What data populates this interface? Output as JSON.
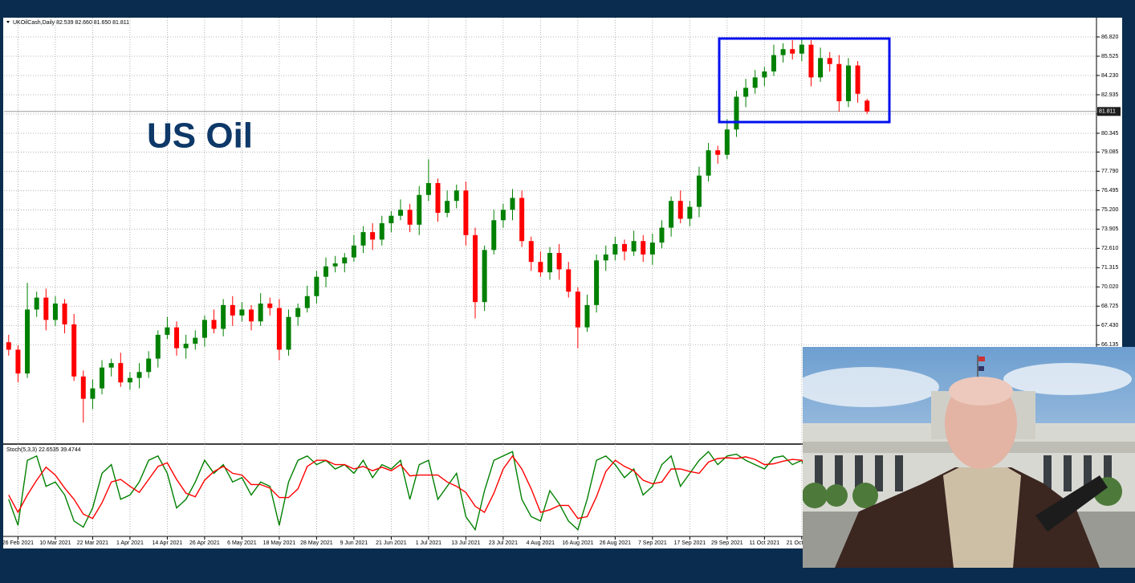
{
  "chart_data": [
    {
      "type": "candlestick",
      "title": "UKOilCash,Daily 82.539 82.660 81.650 81.811",
      "annotation": "US Oil",
      "open": [
        66.3,
        65.8,
        64.2,
        68.5,
        69.3,
        67.8,
        68.9,
        67.5,
        64.0,
        62.5,
        63.2,
        64.6,
        64.9,
        63.6,
        63.9,
        64.3,
        65.2,
        66.8,
        67.3,
        65.9,
        66.2,
        66.6,
        67.8,
        67.2,
        68.8,
        68.1,
        68.5,
        67.7,
        68.9,
        68.6,
        65.8,
        68.0,
        68.6,
        69.4,
        70.7,
        71.4,
        71.6,
        72.0,
        72.8,
        73.7,
        73.2,
        74.3,
        74.8,
        75.2,
        74.2,
        76.2,
        77.0,
        75.0,
        75.8,
        76.5,
        73.5,
        69.0,
        72.5,
        74.5,
        75.2,
        76.0,
        73.1,
        71.7,
        71.0,
        72.3,
        71.2,
        69.7,
        67.3,
        68.8,
        71.8,
        72.2,
        72.9,
        72.4,
        73.1,
        72.2,
        73.0,
        74.0,
        75.8,
        74.6,
        75.4,
        77.5,
        79.2,
        78.9,
        80.6,
        82.8,
        83.4,
        84.1,
        84.5,
        85.6,
        86.0,
        85.7,
        86.3,
        84.1,
        85.4,
        85.0,
        82.5,
        84.9,
        82.539
      ],
      "high": [
        66.8,
        66.1,
        70.3,
        69.7,
        69.9,
        69.4,
        69.2,
        68.2,
        64.4,
        63.8,
        65.1,
        65.2,
        65.6,
        64.3,
        64.9,
        65.7,
        67.1,
        68.0,
        67.7,
        66.8,
        67.1,
        68.1,
        68.5,
        69.2,
        69.4,
        69.0,
        68.8,
        69.6,
        69.3,
        69.2,
        68.5,
        68.9,
        70.1,
        71.1,
        72.0,
        72.1,
        72.3,
        73.5,
        74.1,
        74.3,
        74.8,
        75.1,
        75.9,
        75.6,
        76.8,
        78.6,
        77.3,
        76.5,
        76.9,
        77.1,
        74.0,
        72.8,
        75.2,
        75.6,
        76.6,
        76.5,
        73.4,
        72.4,
        72.7,
        72.9,
        71.7,
        70.0,
        69.5,
        72.2,
        72.8,
        73.4,
        73.2,
        73.8,
        73.5,
        73.6,
        74.5,
        76.1,
        76.5,
        75.8,
        78.1,
        79.7,
        79.5,
        81.3,
        83.2,
        84.0,
        84.6,
        84.8,
        86.3,
        86.4,
        86.6,
        86.7,
        86.6,
        86.1,
        85.8,
        85.6,
        85.4,
        85.2,
        82.66
      ],
      "low": [
        65.4,
        63.6,
        63.9,
        68.0,
        67.1,
        67.4,
        66.9,
        63.7,
        60.9,
        61.8,
        62.8,
        64.0,
        63.3,
        63.1,
        63.2,
        63.9,
        64.6,
        66.5,
        65.4,
        65.2,
        65.8,
        66.0,
        66.9,
        66.7,
        67.4,
        67.7,
        67.1,
        67.4,
        68.1,
        65.1,
        65.4,
        67.4,
        68.3,
        68.9,
        70.0,
        71.0,
        71.0,
        71.7,
        72.3,
        72.5,
        72.8,
        73.7,
        74.5,
        73.7,
        73.5,
        75.8,
        74.4,
        74.7,
        75.3,
        72.8,
        67.9,
        68.4,
        72.2,
        74.0,
        74.5,
        72.7,
        71.1,
        70.7,
        70.5,
        70.5,
        69.3,
        65.9,
        67.0,
        68.3,
        71.1,
        71.8,
        71.8,
        72.1,
        71.7,
        71.5,
        72.6,
        73.4,
        74.3,
        74.1,
        74.7,
        77.1,
        78.3,
        78.6,
        80.1,
        82.1,
        83.0,
        83.5,
        84.2,
        85.1,
        85.3,
        85.2,
        83.5,
        83.8,
        84.5,
        81.8,
        82.1,
        82.4,
        81.65
      ],
      "close": [
        65.8,
        64.2,
        68.5,
        69.3,
        67.8,
        68.9,
        67.5,
        64.0,
        62.5,
        63.2,
        64.6,
        64.9,
        63.6,
        63.9,
        64.3,
        65.2,
        66.8,
        67.3,
        65.9,
        66.2,
        66.6,
        67.8,
        67.2,
        68.8,
        68.1,
        68.5,
        67.7,
        68.9,
        68.6,
        65.8,
        68.0,
        68.6,
        69.4,
        70.7,
        71.4,
        71.6,
        72.0,
        72.8,
        73.7,
        73.2,
        74.3,
        74.8,
        75.2,
        74.2,
        76.2,
        77.0,
        75.0,
        75.8,
        76.5,
        73.5,
        69.0,
        72.5,
        74.5,
        75.2,
        76.0,
        73.1,
        71.7,
        71.0,
        72.3,
        71.2,
        69.7,
        67.3,
        68.8,
        71.8,
        72.2,
        72.9,
        72.4,
        73.1,
        72.2,
        73.0,
        74.0,
        75.8,
        74.6,
        75.4,
        77.5,
        79.2,
        78.9,
        80.6,
        82.8,
        83.4,
        84.1,
        84.5,
        85.6,
        86.0,
        85.7,
        86.3,
        84.1,
        85.4,
        85.0,
        82.5,
        84.9,
        83.0,
        81.811
      ],
      "up_color": "#008000",
      "down_color": "#ff0000",
      "xlim": [
        -0.5,
        116.5
      ],
      "xticks": [
        {
          "value": 1,
          "label": "26 Feb 2021"
        },
        {
          "value": 5,
          "label": "10 Mar 2021"
        },
        {
          "value": 9,
          "label": "22 Mar 2021"
        },
        {
          "value": 13,
          "label": "1 Apr 2021"
        },
        {
          "value": 17,
          "label": "14 Apr 2021"
        },
        {
          "value": 21,
          "label": "26 Apr 2021"
        },
        {
          "value": 25,
          "label": "6 May 2021"
        },
        {
          "value": 29,
          "label": "18 May 2021"
        },
        {
          "value": 33,
          "label": "28 May 2021"
        },
        {
          "value": 37,
          "label": "9 Jun 2021"
        },
        {
          "value": 41,
          "label": "21 Jun 2021"
        },
        {
          "value": 45,
          "label": "1 Jul 2021"
        },
        {
          "value": 49,
          "label": "13 Jul 2021"
        },
        {
          "value": 53,
          "label": "23 Jul 2021"
        },
        {
          "value": 57,
          "label": "4 Aug 2021"
        },
        {
          "value": 61,
          "label": "16 Aug 2021"
        },
        {
          "value": 65,
          "label": "26 Aug 2021"
        },
        {
          "value": 69,
          "label": "7 Sep 2021"
        },
        {
          "value": 73,
          "label": "17 Sep 2021"
        },
        {
          "value": 77,
          "label": "29 Sep 2021"
        },
        {
          "value": 81,
          "label": "11 Oct 2021"
        },
        {
          "value": 85,
          "label": "21 Oct 2021"
        }
      ],
      "ylim": [
        59.51,
        88.115
      ],
      "yticks": [
        {
          "value": 86.82,
          "label": "86.820"
        },
        85.525,
        {
          "value": 84.23,
          "label": "84.230"
        },
        82.935,
        {
          "value": 81.64,
          "label": "81.640"
        },
        80.345,
        79.085,
        {
          "value": 77.79,
          "label": "77.790"
        },
        76.495,
        {
          "value": 75.2,
          "label": "75.200"
        },
        73.905,
        {
          "value": 72.61,
          "label": "72.610"
        },
        71.315,
        {
          "value": 70.02,
          "label": "70.020"
        },
        68.725,
        {
          "value": 67.43,
          "label": "67.430"
        },
        66.135
      ],
      "current_price": 81.811,
      "grid": true
    },
    {
      "type": "line",
      "title": "Stoch(5,3,3) 22.6535 39.4744",
      "series": [
        {
          "color": "#008000",
          "values": [
            40,
            10,
            85,
            90,
            55,
            60,
            45,
            15,
            8,
            30,
            70,
            80,
            40,
            45,
            60,
            85,
            90,
            70,
            30,
            40,
            60,
            85,
            70,
            80,
            60,
            65,
            45,
            60,
            55,
            10,
            60,
            85,
            90,
            80,
            85,
            75,
            80,
            70,
            85,
            65,
            80,
            75,
            85,
            40,
            80,
            85,
            40,
            55,
            70,
            20,
            5,
            50,
            85,
            90,
            95,
            40,
            20,
            15,
            50,
            35,
            15,
            5,
            40,
            85,
            90,
            80,
            65,
            75,
            45,
            55,
            80,
            90,
            55,
            70,
            85,
            95,
            80,
            90,
            92,
            85,
            80,
            75,
            88,
            90,
            80,
            85,
            55,
            70,
            60,
            20,
            60,
            35,
            22.6535
          ]
        },
        {
          "color": "#ff0000",
          "values": [
            45,
            25,
            45,
            62,
            77,
            68,
            53,
            40,
            23,
            18,
            36,
            60,
            63,
            55,
            48,
            63,
            78,
            82,
            63,
            47,
            43,
            62,
            72,
            78,
            70,
            68,
            57,
            57,
            53,
            42,
            42,
            52,
            78,
            85,
            85,
            80,
            80,
            75,
            78,
            73,
            77,
            73,
            80,
            67,
            68,
            68,
            68,
            60,
            55,
            48,
            32,
            25,
            47,
            75,
            90,
            75,
            52,
            25,
            28,
            33,
            33,
            18,
            20,
            43,
            72,
            85,
            78,
            73,
            62,
            58,
            60,
            75,
            75,
            72,
            70,
            83,
            87,
            88,
            87,
            89,
            86,
            80,
            81,
            84,
            86,
            85,
            73,
            70,
            62,
            50,
            47,
            38,
            39.4744
          ]
        }
      ],
      "xlim": [
        -0.5,
        116.5
      ],
      "ylim": [
        0,
        100
      ]
    }
  ]
}
